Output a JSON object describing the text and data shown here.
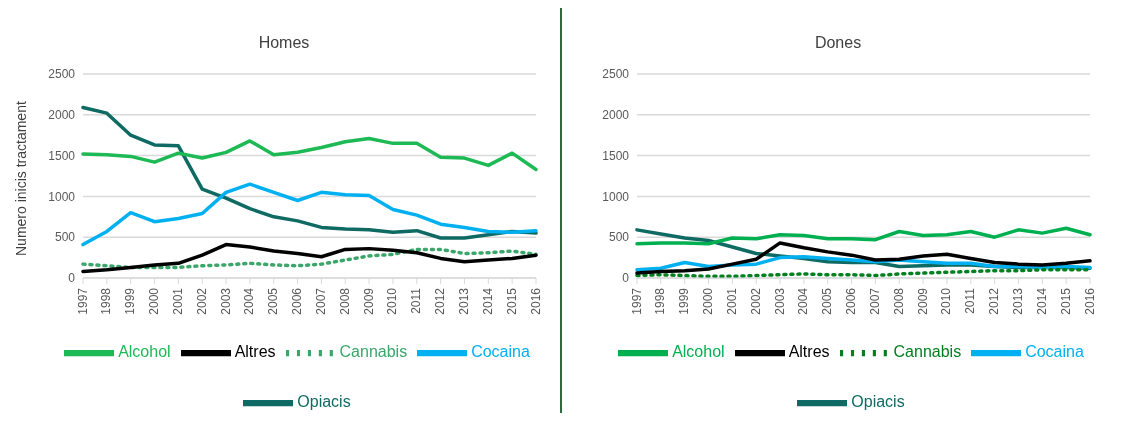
{
  "chart_data": [
    {
      "type": "line",
      "title": "Homes",
      "ylabel": "Numero inicis tractament",
      "categories": [
        "1997",
        "1998",
        "1999",
        "2000",
        "2001",
        "2002",
        "2003",
        "2004",
        "2005",
        "2006",
        "2007",
        "2008",
        "2009",
        "2010",
        "2011",
        "2012",
        "2013",
        "2014",
        "2015",
        "2016"
      ],
      "ylim": [
        0,
        2500
      ],
      "yticks": [
        0,
        500,
        1000,
        1500,
        2000,
        2500
      ],
      "grid": "y",
      "legend": "bottom",
      "series": [
        {
          "name": "Opiacis",
          "color": "#0e6a63",
          "values": [
            2090,
            2020,
            1750,
            1630,
            1620,
            1090,
            980,
            850,
            750,
            700,
            620,
            600,
            590,
            560,
            580,
            490,
            490,
            530,
            570,
            550
          ]
        },
        {
          "name": "Cocaina",
          "color": "#00b0f0",
          "values": [
            410,
            570,
            800,
            690,
            730,
            790,
            1050,
            1150,
            1050,
            950,
            1050,
            1020,
            1010,
            840,
            770,
            660,
            620,
            570,
            560,
            580
          ]
        },
        {
          "name": "Cannabis",
          "color": "#3aa66a",
          "line_style": "dotted",
          "values": [
            170,
            150,
            130,
            130,
            130,
            150,
            160,
            180,
            160,
            150,
            170,
            220,
            270,
            290,
            350,
            350,
            300,
            310,
            330,
            290
          ]
        },
        {
          "name": "Alcohol",
          "color": "#1db954",
          "values": [
            1520,
            1510,
            1490,
            1420,
            1530,
            1470,
            1540,
            1680,
            1510,
            1540,
            1600,
            1670,
            1710,
            1650,
            1650,
            1480,
            1470,
            1380,
            1530,
            1330
          ]
        },
        {
          "name": "Altres",
          "color": "#000000",
          "values": [
            80,
            100,
            130,
            160,
            180,
            280,
            410,
            380,
            330,
            300,
            260,
            350,
            360,
            340,
            310,
            240,
            200,
            220,
            240,
            280
          ]
        }
      ]
    },
    {
      "type": "line",
      "title": "Dones",
      "categories": [
        "1997",
        "1998",
        "1999",
        "2000",
        "2001",
        "2002",
        "2003",
        "2004",
        "2005",
        "2006",
        "2007",
        "2008",
        "2009",
        "2010",
        "2011",
        "2012",
        "2013",
        "2014",
        "2015",
        "2016"
      ],
      "ylim": [
        0,
        2500
      ],
      "yticks": [
        0,
        500,
        1000,
        1500,
        2000,
        2500
      ],
      "grid": "y",
      "legend": "bottom",
      "series": [
        {
          "name": "Opiacis",
          "color": "#0e6a63",
          "values": [
            590,
            540,
            490,
            460,
            380,
            300,
            270,
            240,
            200,
            190,
            190,
            140,
            150,
            160,
            160,
            140,
            130,
            130,
            130,
            120
          ]
        },
        {
          "name": "Cocaina",
          "color": "#00b0f0",
          "values": [
            100,
            120,
            190,
            140,
            160,
            170,
            250,
            260,
            240,
            220,
            200,
            220,
            200,
            180,
            180,
            140,
            140,
            130,
            140,
            130
          ]
        },
        {
          "name": "Cannabis",
          "color": "#007f1f",
          "line_style": "dotted",
          "values": [
            30,
            40,
            30,
            20,
            20,
            30,
            40,
            50,
            40,
            40,
            30,
            50,
            60,
            70,
            80,
            90,
            90,
            100,
            100,
            100
          ]
        },
        {
          "name": "Alcohol",
          "color": "#00b050",
          "values": [
            420,
            430,
            430,
            420,
            490,
            480,
            530,
            520,
            480,
            480,
            470,
            570,
            520,
            530,
            570,
            500,
            590,
            550,
            610,
            530
          ]
        },
        {
          "name": "Altres",
          "color": "#000000",
          "values": [
            60,
            80,
            90,
            110,
            170,
            230,
            430,
            370,
            320,
            280,
            220,
            230,
            270,
            290,
            240,
            190,
            170,
            160,
            180,
            210
          ]
        }
      ]
    }
  ]
}
